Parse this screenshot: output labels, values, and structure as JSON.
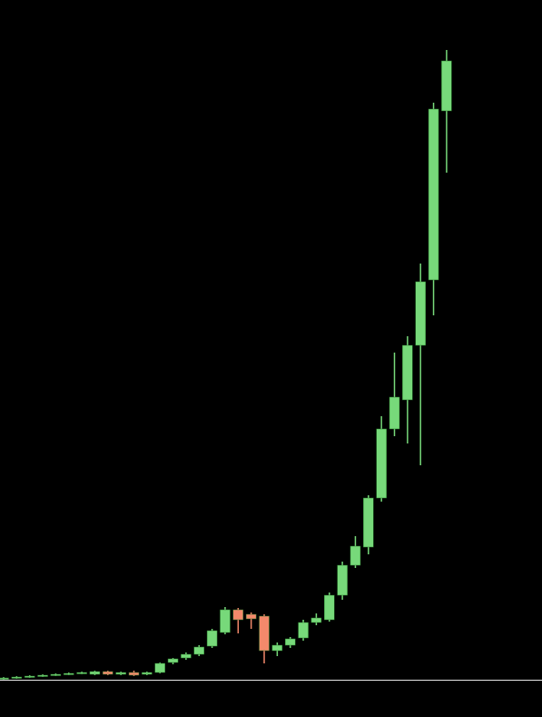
{
  "chart_data": {
    "type": "candlestick",
    "open": [
      1,
      2,
      3,
      4,
      5,
      6,
      7,
      6,
      9,
      6,
      8,
      6,
      8,
      19,
      24,
      28,
      37,
      52,
      77,
      72,
      70,
      32,
      38,
      46,
      63,
      66,
      93,
      126,
      146,
      200,
      276,
      308,
      368,
      440,
      626
    ],
    "high": [
      3,
      4,
      5,
      6,
      7,
      8,
      9,
      10,
      10,
      9,
      10,
      9,
      19,
      24,
      30,
      38,
      56,
      80,
      79,
      74,
      72,
      41,
      47,
      66,
      73,
      96,
      130,
      158,
      203,
      290,
      360,
      378,
      458,
      635,
      693
    ],
    "low": [
      0,
      1,
      2,
      3,
      4,
      5,
      6,
      5,
      5,
      5,
      4,
      5,
      7,
      17,
      22,
      26,
      35,
      50,
      51,
      56,
      18,
      26,
      35,
      43,
      60,
      64,
      88,
      123,
      138,
      196,
      268,
      260,
      236,
      401,
      558
    ],
    "close": [
      2,
      3,
      4,
      5,
      6,
      7,
      8,
      9,
      6,
      8,
      5,
      8,
      18,
      23,
      28,
      36,
      54,
      77,
      66,
      67,
      32,
      38,
      45,
      63,
      68,
      93,
      126,
      147,
      200,
      276,
      311,
      368,
      438,
      628,
      681
    ],
    "up_color": "#77d97a",
    "down_color": "#f4896b",
    "ylim": [
      0,
      700
    ]
  }
}
